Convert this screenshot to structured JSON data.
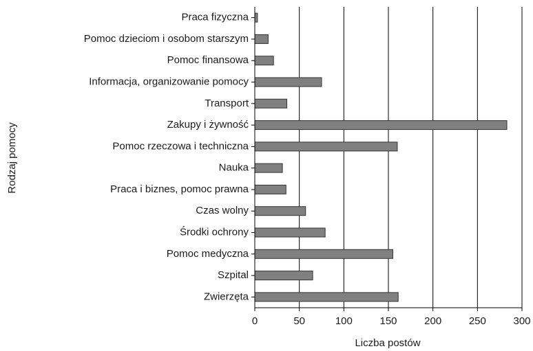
{
  "chart_data": {
    "type": "bar",
    "orientation": "horizontal",
    "x_label": "Liczba postów",
    "y_label": "Rodzaj pomocy",
    "categories": [
      "Praca fizyczna",
      "Pomoc dzieciom i osobom starszym",
      "Pomoc finansowa",
      "Informacja, organizowanie pomocy",
      "Transport",
      "Zakupy i żywność",
      "Pomoc rzeczowa i techniczna",
      "Nauka",
      "Praca i biznes, pomoc prawna",
      "Czas wolny",
      "Środki ochrony",
      "Pomoc medyczna",
      "Szpital",
      "Zwierzęta"
    ],
    "values": [
      3,
      15,
      21,
      75,
      36,
      283,
      160,
      31,
      35,
      57,
      79,
      155,
      65,
      161
    ],
    "color": "#808080",
    "xlim": [
      0,
      300
    ],
    "xticks": [
      0,
      50,
      100,
      150,
      200,
      250,
      300
    ],
    "grid": true
  }
}
